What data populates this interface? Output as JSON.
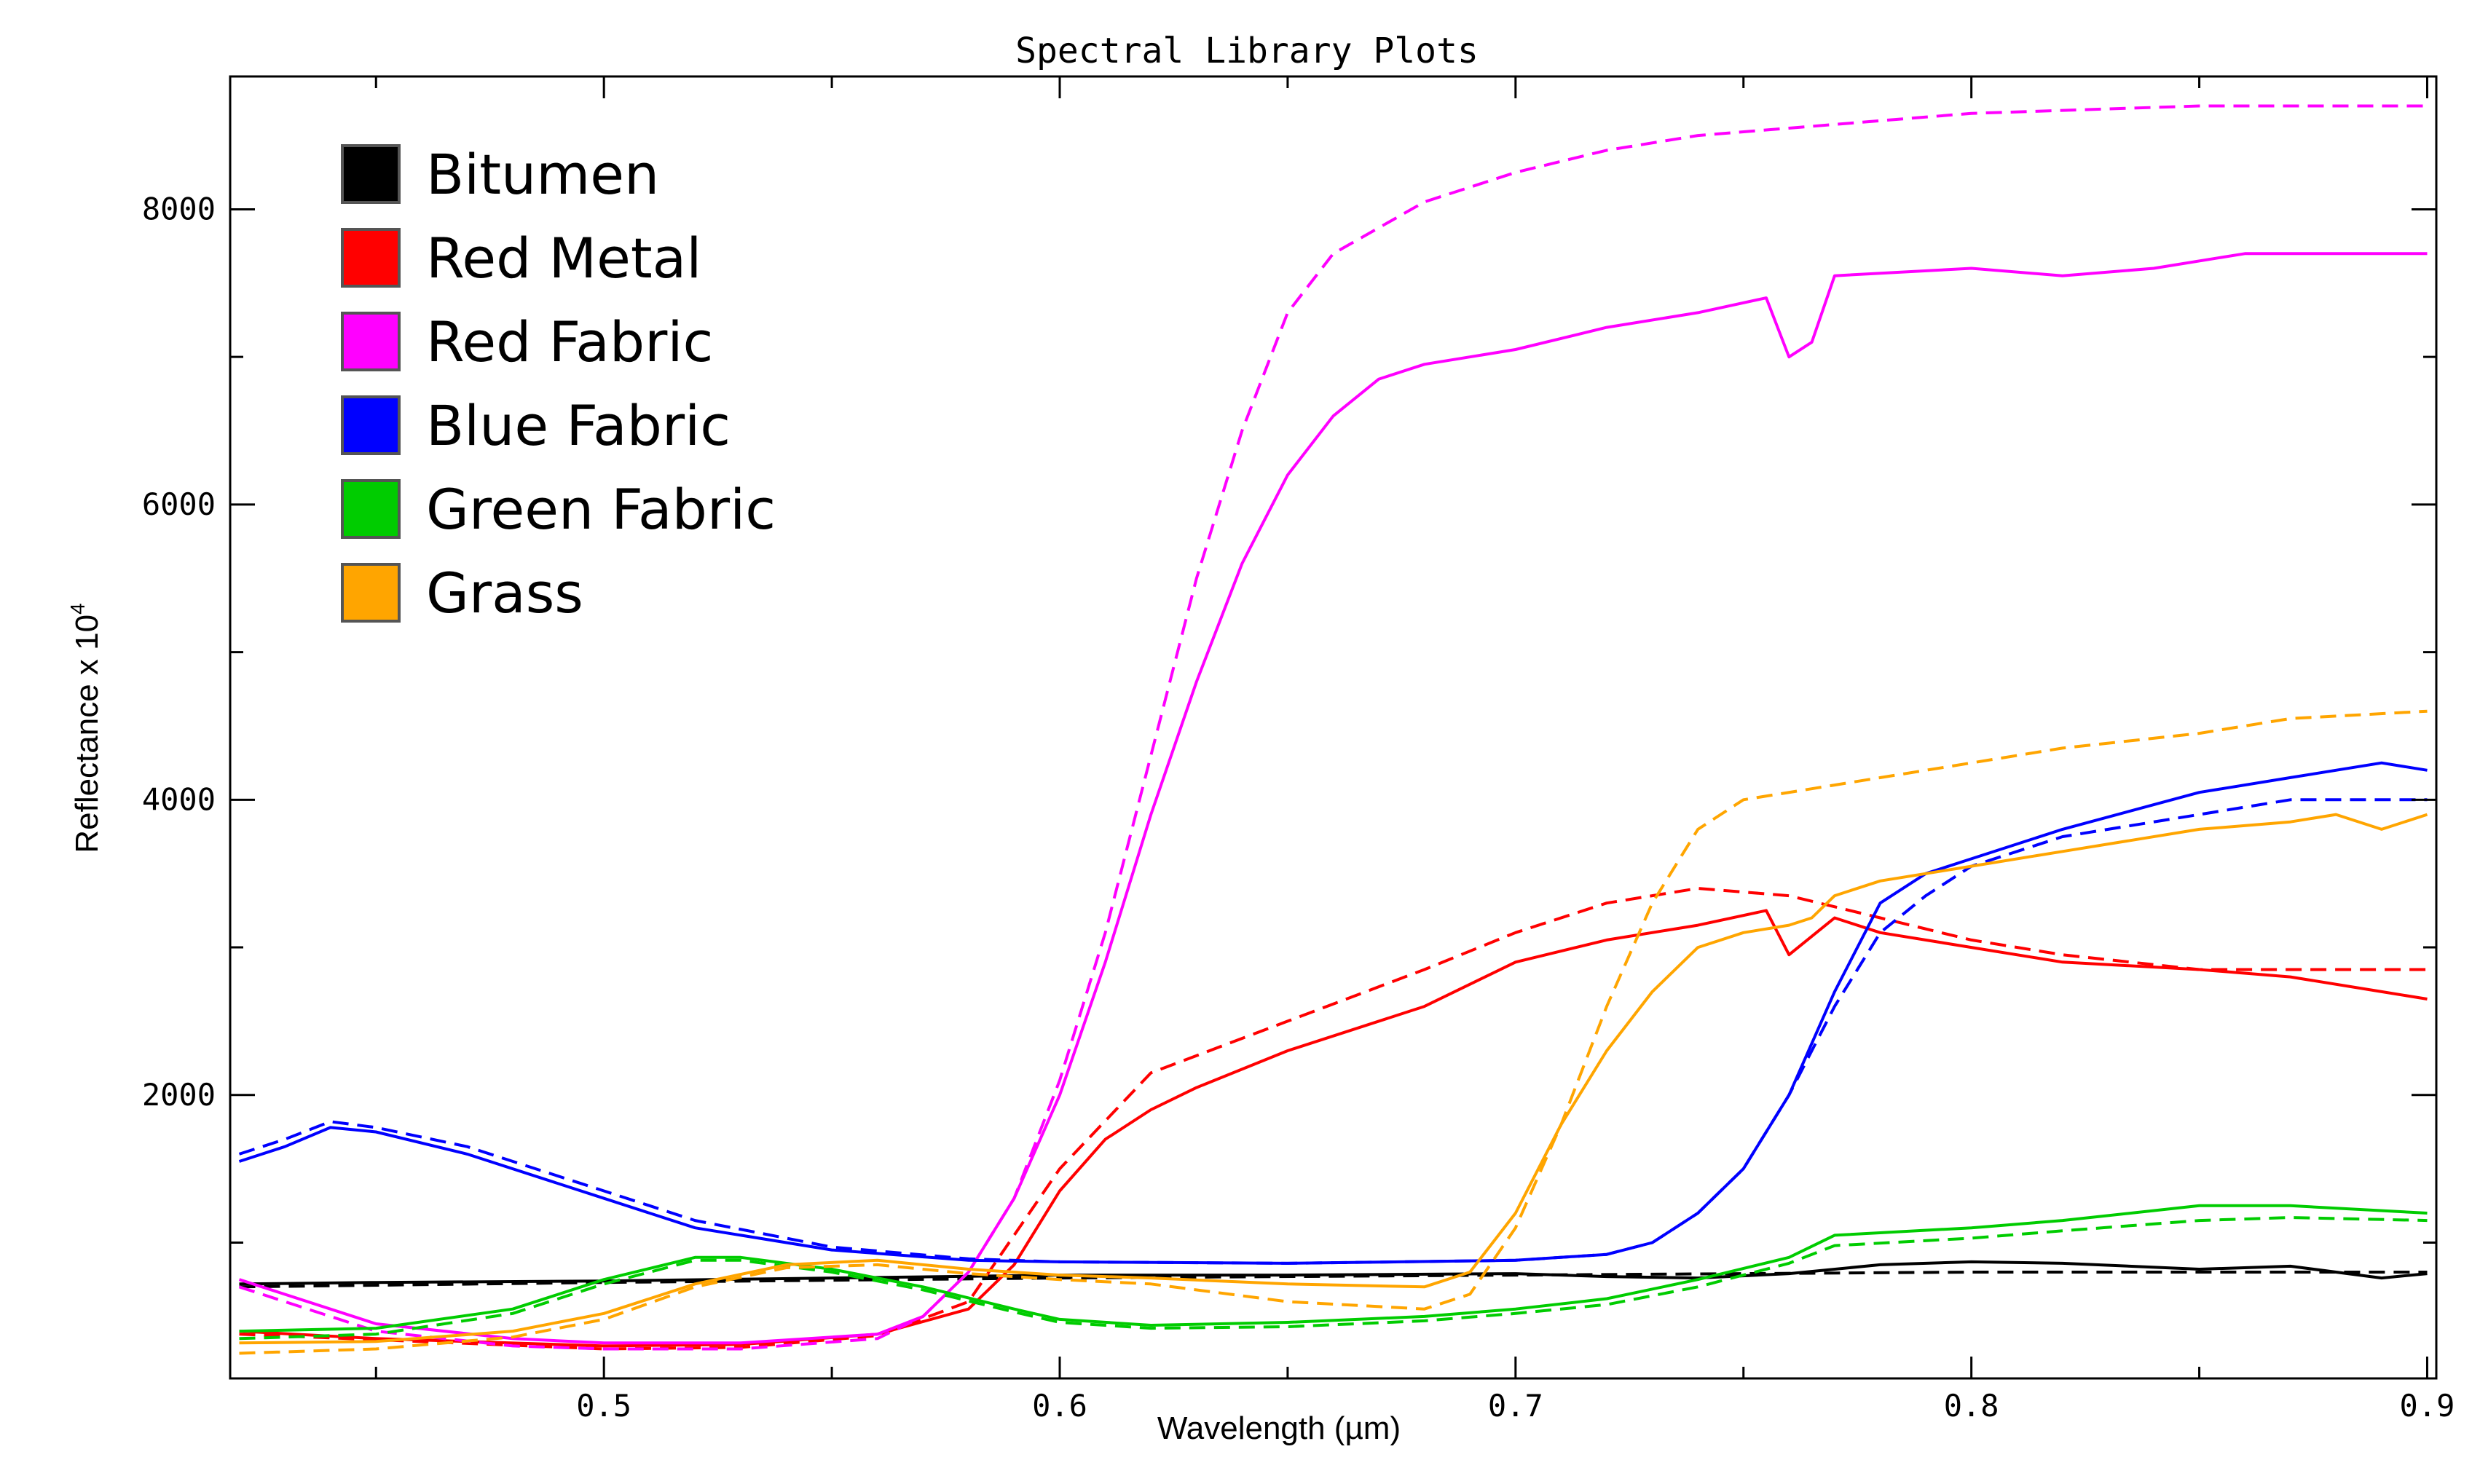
{
  "chart_data": {
    "type": "line",
    "title": "Spectral Library Plots",
    "xlabel": "Wavelength (µm)",
    "ylabel": "Reflectance x 10",
    "ylabel_superscript": "4",
    "xlim": [
      0.418,
      0.902
    ],
    "ylim": [
      80,
      8900
    ],
    "x_ticks": [
      0.5,
      0.6,
      0.7,
      0.8,
      0.9
    ],
    "x_tick_labels": [
      "0.5",
      "0.6",
      "0.7",
      "0.8",
      "0.9"
    ],
    "y_ticks": [
      2000,
      4000,
      6000,
      8000
    ],
    "y_tick_labels": [
      "2000",
      "4000",
      "6000",
      "8000"
    ],
    "grid": false,
    "legend_position": "top-left",
    "line_styles": [
      "solid",
      "dashed"
    ],
    "series": [
      {
        "name": "Bitumen",
        "color": "#000000",
        "solid": {
          "x": [
            0.42,
            0.45,
            0.5,
            0.55,
            0.6,
            0.65,
            0.7,
            0.72,
            0.74,
            0.76,
            0.78,
            0.8,
            0.82,
            0.85,
            0.87,
            0.89,
            0.9
          ],
          "y": [
            720,
            730,
            740,
            760,
            780,
            780,
            790,
            770,
            760,
            790,
            850,
            870,
            860,
            820,
            840,
            760,
            790
          ]
        },
        "dashed": {
          "x": [
            0.42,
            0.5,
            0.6,
            0.7,
            0.75,
            0.8,
            0.85,
            0.9
          ],
          "y": [
            700,
            730,
            760,
            780,
            790,
            800,
            800,
            800
          ]
        }
      },
      {
        "name": "Red Metal",
        "color": "#ff0000",
        "solid": {
          "x": [
            0.42,
            0.45,
            0.5,
            0.53,
            0.56,
            0.58,
            0.59,
            0.6,
            0.61,
            0.62,
            0.63,
            0.65,
            0.68,
            0.7,
            0.72,
            0.74,
            0.755,
            0.76,
            0.77,
            0.78,
            0.8,
            0.82,
            0.85,
            0.87,
            0.89,
            0.9
          ],
          "y": [
            400,
            350,
            300,
            310,
            380,
            550,
            850,
            1350,
            1700,
            1900,
            2050,
            2300,
            2600,
            2900,
            3050,
            3150,
            3250,
            2950,
            3200,
            3100,
            3000,
            2900,
            2850,
            2800,
            2700,
            2650
          ]
        },
        "dashed": {
          "x": [
            0.42,
            0.5,
            0.53,
            0.56,
            0.58,
            0.6,
            0.62,
            0.65,
            0.68,
            0.7,
            0.72,
            0.74,
            0.76,
            0.78,
            0.8,
            0.82,
            0.85,
            0.9
          ],
          "y": [
            380,
            280,
            290,
            370,
            600,
            1500,
            2150,
            2500,
            2850,
            3100,
            3300,
            3400,
            3350,
            3200,
            3050,
            2950,
            2850,
            2850
          ]
        }
      },
      {
        "name": "Red Fabric",
        "color": "#ff00ff",
        "solid": {
          "x": [
            0.42,
            0.45,
            0.48,
            0.5,
            0.53,
            0.56,
            0.57,
            0.58,
            0.59,
            0.6,
            0.61,
            0.62,
            0.63,
            0.64,
            0.65,
            0.66,
            0.67,
            0.68,
            0.7,
            0.72,
            0.74,
            0.755,
            0.76,
            0.765,
            0.77,
            0.8,
            0.82,
            0.84,
            0.86,
            0.88,
            0.9
          ],
          "y": [
            750,
            450,
            350,
            320,
            320,
            380,
            500,
            800,
            1300,
            2000,
            2900,
            3900,
            4800,
            5600,
            6200,
            6600,
            6850,
            6950,
            7050,
            7200,
            7300,
            7400,
            7000,
            7100,
            7550,
            7600,
            7550,
            7600,
            7700,
            7700,
            7700
          ]
        },
        "dashed": {
          "x": [
            0.42,
            0.45,
            0.48,
            0.5,
            0.53,
            0.56,
            0.57,
            0.58,
            0.59,
            0.6,
            0.61,
            0.62,
            0.63,
            0.64,
            0.65,
            0.66,
            0.68,
            0.7,
            0.72,
            0.74,
            0.76,
            0.78,
            0.8,
            0.85,
            0.9
          ],
          "y": [
            700,
            400,
            300,
            280,
            280,
            350,
            500,
            800,
            1300,
            2100,
            3100,
            4300,
            5500,
            6500,
            7300,
            7700,
            8050,
            8250,
            8400,
            8500,
            8550,
            8600,
            8650,
            8700,
            8700
          ]
        }
      },
      {
        "name": "Blue Fabric",
        "color": "#0000ff",
        "solid": {
          "x": [
            0.42,
            0.43,
            0.44,
            0.45,
            0.47,
            0.5,
            0.52,
            0.55,
            0.58,
            0.6,
            0.65,
            0.7,
            0.72,
            0.73,
            0.74,
            0.75,
            0.76,
            0.77,
            0.78,
            0.79,
            0.8,
            0.82,
            0.85,
            0.87,
            0.89,
            0.9
          ],
          "y": [
            1550,
            1650,
            1780,
            1750,
            1600,
            1300,
            1100,
            950,
            880,
            870,
            860,
            880,
            920,
            1000,
            1200,
            1500,
            2000,
            2700,
            3300,
            3500,
            3600,
            3800,
            4050,
            4150,
            4250,
            4200
          ]
        },
        "dashed": {
          "x": [
            0.42,
            0.43,
            0.44,
            0.45,
            0.47,
            0.5,
            0.52,
            0.55,
            0.58,
            0.6,
            0.65,
            0.7,
            0.72,
            0.73,
            0.74,
            0.75,
            0.76,
            0.77,
            0.78,
            0.79,
            0.8,
            0.82,
            0.85,
            0.87,
            0.9
          ],
          "y": [
            1600,
            1700,
            1820,
            1780,
            1650,
            1350,
            1150,
            970,
            890,
            870,
            860,
            880,
            920,
            1000,
            1200,
            1500,
            2000,
            2600,
            3100,
            3350,
            3550,
            3750,
            3900,
            4000,
            4000
          ]
        }
      },
      {
        "name": "Green Fabric",
        "color": "#00cc00",
        "solid": {
          "x": [
            0.42,
            0.45,
            0.48,
            0.5,
            0.52,
            0.53,
            0.55,
            0.57,
            0.59,
            0.6,
            0.62,
            0.65,
            0.68,
            0.7,
            0.72,
            0.74,
            0.76,
            0.77,
            0.8,
            0.82,
            0.85,
            0.87,
            0.9
          ],
          "y": [
            400,
            420,
            550,
            750,
            900,
            900,
            820,
            700,
            550,
            480,
            440,
            460,
            500,
            550,
            620,
            750,
            900,
            1050,
            1100,
            1150,
            1250,
            1250,
            1200
          ]
        },
        "dashed": {
          "x": [
            0.42,
            0.45,
            0.48,
            0.5,
            0.52,
            0.53,
            0.55,
            0.57,
            0.59,
            0.6,
            0.62,
            0.65,
            0.68,
            0.7,
            0.72,
            0.74,
            0.76,
            0.77,
            0.8,
            0.82,
            0.85,
            0.87,
            0.9
          ],
          "y": [
            350,
            380,
            520,
            720,
            880,
            880,
            800,
            680,
            530,
            460,
            420,
            430,
            470,
            520,
            580,
            700,
            860,
            980,
            1030,
            1080,
            1150,
            1170,
            1150
          ]
        }
      },
      {
        "name": "Grass",
        "color": "#ffa500",
        "solid": {
          "x": [
            0.42,
            0.45,
            0.48,
            0.5,
            0.52,
            0.54,
            0.56,
            0.58,
            0.6,
            0.62,
            0.65,
            0.68,
            0.69,
            0.7,
            0.71,
            0.72,
            0.73,
            0.74,
            0.75,
            0.76,
            0.765,
            0.77,
            0.78,
            0.8,
            0.82,
            0.85,
            0.87,
            0.88,
            0.89,
            0.9
          ],
          "y": [
            320,
            330,
            400,
            520,
            720,
            850,
            880,
            820,
            780,
            760,
            720,
            700,
            800,
            1200,
            1800,
            2300,
            2700,
            3000,
            3100,
            3150,
            3200,
            3350,
            3450,
            3550,
            3650,
            3800,
            3850,
            3900,
            3800,
            3900
          ]
        },
        "dashed": {
          "x": [
            0.42,
            0.45,
            0.48,
            0.5,
            0.52,
            0.54,
            0.56,
            0.58,
            0.6,
            0.62,
            0.65,
            0.68,
            0.69,
            0.7,
            0.71,
            0.72,
            0.73,
            0.74,
            0.75,
            0.77,
            0.8,
            0.82,
            0.85,
            0.87,
            0.9
          ],
          "y": [
            250,
            280,
            360,
            480,
            700,
            830,
            850,
            790,
            750,
            720,
            600,
            550,
            650,
            1100,
            1800,
            2600,
            3300,
            3800,
            4000,
            4100,
            4250,
            4350,
            4450,
            4550,
            4600
          ]
        }
      }
    ]
  }
}
